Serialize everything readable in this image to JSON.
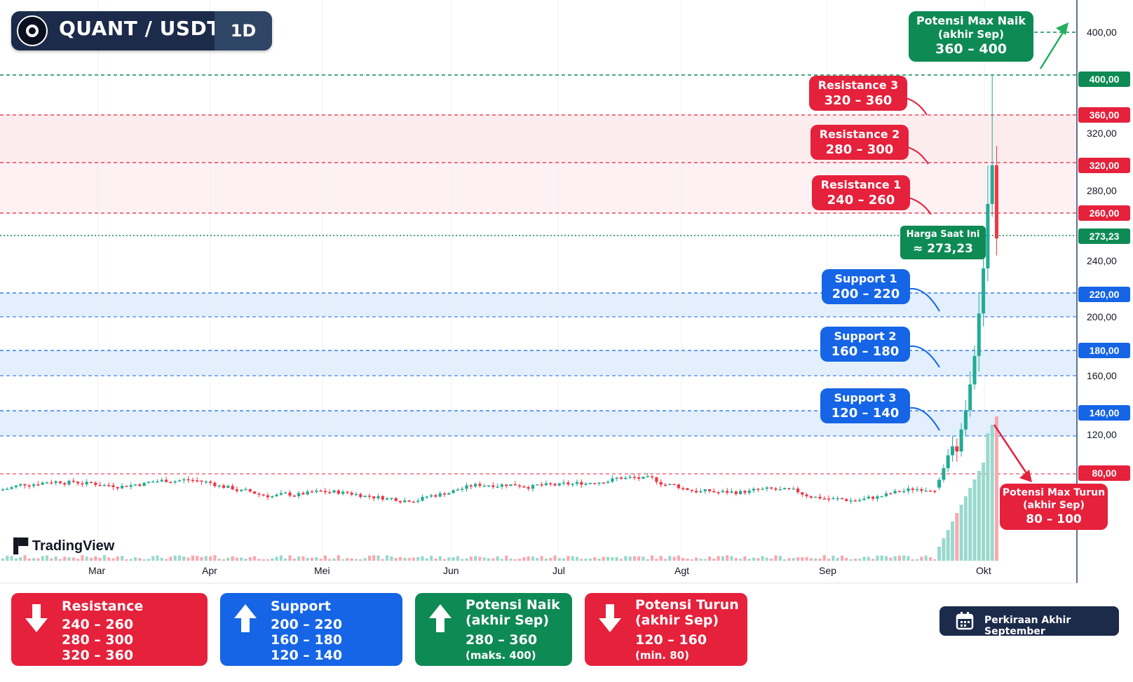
{
  "header": {
    "symbol": "QUANT / USDT",
    "timeframe": "1D"
  },
  "watermark": "TradingView",
  "chart_data": {
    "type": "candlestick",
    "x_ticks": [
      "Mar",
      "Apr",
      "Mei",
      "Jun",
      "Jul",
      "Agt",
      "Sep",
      "Okt"
    ],
    "y_ticks": [
      "400,00",
      "320,00",
      "280,00",
      "240,00",
      "200,00",
      "160,00",
      "120,00"
    ],
    "price_tags": [
      {
        "label": "400,00",
        "color": "#0e8a55"
      },
      {
        "label": "360,00",
        "color": "#e5213c"
      },
      {
        "label": "320,00",
        "color": "#e5213c"
      },
      {
        "label": "260,00",
        "color": "#e5213c"
      },
      {
        "label": "273,23",
        "color": "#0e8a55"
      },
      {
        "label": "220,00",
        "color": "#1565e6"
      },
      {
        "label": "180,00",
        "color": "#1565e6"
      },
      {
        "label": "140,00",
        "color": "#1565e6"
      },
      {
        "label": "80,00",
        "color": "#e5213c"
      }
    ],
    "zones": {
      "resistance": [
        [
          240,
          260
        ],
        [
          280,
          300
        ],
        [
          320,
          360
        ]
      ],
      "support": [
        [
          200,
          220
        ],
        [
          160,
          180
        ],
        [
          120,
          140
        ]
      ]
    },
    "current_price": 273.23,
    "late_candles": [
      {
        "o": 80,
        "c": 86,
        "h": 88,
        "l": 78
      },
      {
        "o": 86,
        "c": 95,
        "h": 98,
        "l": 84
      },
      {
        "o": 95,
        "c": 105,
        "h": 110,
        "l": 92
      },
      {
        "o": 105,
        "c": 112,
        "h": 120,
        "l": 100
      },
      {
        "o": 112,
        "c": 108,
        "h": 118,
        "l": 100
      },
      {
        "o": 108,
        "c": 125,
        "h": 130,
        "l": 104
      },
      {
        "o": 125,
        "c": 140,
        "h": 148,
        "l": 120
      },
      {
        "o": 140,
        "c": 160,
        "h": 170,
        "l": 135
      },
      {
        "o": 160,
        "c": 182,
        "h": 190,
        "l": 156
      },
      {
        "o": 182,
        "c": 215,
        "h": 230,
        "l": 170
      },
      {
        "o": 215,
        "c": 250,
        "h": 265,
        "l": 205
      },
      {
        "o": 250,
        "c": 300,
        "h": 330,
        "l": 240
      },
      {
        "o": 300,
        "c": 330,
        "h": 400,
        "l": 290
      },
      {
        "o": 330,
        "c": 273.23,
        "h": 345,
        "l": 260
      }
    ]
  },
  "annotations": {
    "max_up": {
      "title": "Potensi Max Naik",
      "sub": "(akhir Sep)",
      "range": "360 – 400"
    },
    "r3": {
      "title": "Resistance 3",
      "range": "320 – 360"
    },
    "r2": {
      "title": "Resistance 2",
      "range": "280 – 300"
    },
    "r1": {
      "title": "Resistance 1",
      "range": "240 – 260"
    },
    "now": {
      "title": "Harga Saat Ini",
      "value": "≈ 273,23"
    },
    "s1": {
      "title": "Support 1",
      "range": "200 – 220"
    },
    "s2": {
      "title": "Support 2",
      "range": "160 – 180"
    },
    "s3": {
      "title": "Support 3",
      "range": "120 – 140"
    },
    "max_down": {
      "title": "Potensi Max Turun",
      "sub": "(akhir Sep)",
      "range": "80 – 100"
    }
  },
  "cards": {
    "resistance": {
      "title": "Resistance",
      "values": [
        "240 – 260",
        "280 – 300",
        "320 – 360"
      ]
    },
    "support": {
      "title": "Support",
      "values": [
        "200 – 220",
        "160 – 180",
        "120 – 140"
      ]
    },
    "up": {
      "title": "Potensi Naik",
      "sub": "(akhir Sep)",
      "range": "280 – 360",
      "note": "(maks. 400)"
    },
    "down": {
      "title": "Potensi Turun",
      "sub": "(akhir Sep)",
      "range": "120 – 160",
      "note": "(min. 80)"
    }
  },
  "calendar": {
    "label": "Perkiraan Akhir September"
  },
  "colors": {
    "red": "#e5213c",
    "blue": "#1565e6",
    "green": "#0e8a55",
    "navy": "#1c2b4a",
    "up": "#22ab94",
    "down": "#f23645"
  }
}
